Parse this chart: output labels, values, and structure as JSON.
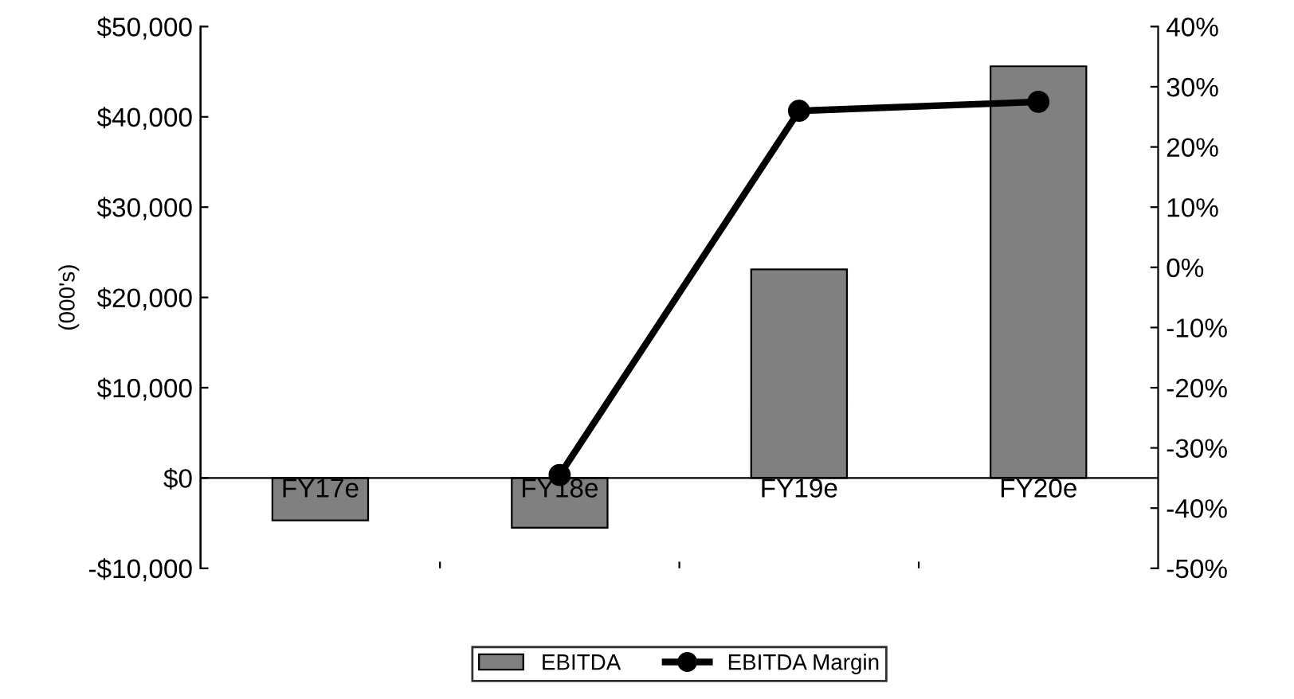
{
  "chart_data": {
    "type": "bar",
    "categories": [
      "FY17e",
      "FY18e",
      "FY19e",
      "FY20e"
    ],
    "ylabel": "(000's)",
    "series": [
      {
        "name": "EBITDA",
        "color": "#808080",
        "values": [
          -4700,
          -5500,
          23100,
          45600
        ]
      },
      {
        "name": "EBITDA Margin",
        "type": "line",
        "axis": "y2",
        "color": "#000000",
        "marker": "circle",
        "values": [
          null,
          -34.5,
          26,
          27.5
        ]
      }
    ],
    "ylim": [
      -10000,
      50000
    ],
    "yticks": [
      {
        "value": -10000,
        "label": "-$10,000"
      },
      {
        "value": 0,
        "label": "$0"
      },
      {
        "value": 10000,
        "label": "$10,000"
      },
      {
        "value": 20000,
        "label": "$20,000"
      },
      {
        "value": 30000,
        "label": "$30,000"
      },
      {
        "value": 40000,
        "label": "$40,000"
      },
      {
        "value": 50000,
        "label": "$50,000"
      }
    ],
    "y2lim": [
      -50,
      40
    ],
    "y2ticks": [
      {
        "value": -50,
        "label": "-50%"
      },
      {
        "value": -40,
        "label": "-40%"
      },
      {
        "value": -30,
        "label": "-30%"
      },
      {
        "value": -20,
        "label": "-20%"
      },
      {
        "value": -10,
        "label": "-10%"
      },
      {
        "value": 0,
        "label": "0%"
      },
      {
        "value": 10,
        "label": "10%"
      },
      {
        "value": 20,
        "label": "20%"
      },
      {
        "value": 30,
        "label": "30%"
      },
      {
        "value": 40,
        "label": "40%"
      }
    ],
    "grid": false,
    "legend": "bottom"
  }
}
